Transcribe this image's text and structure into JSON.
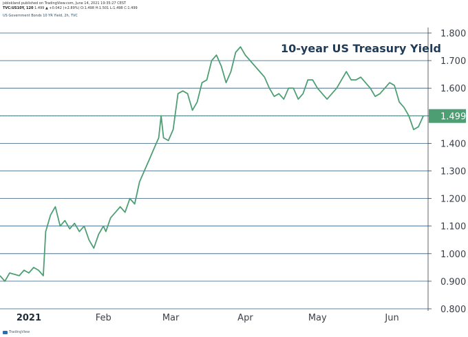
{
  "header": {
    "line1": "jsblokland published on TradingView.com, June 14, 2021 19:35:27 CEST",
    "symbol": "TVC:US10Y, 120",
    "ohlc": "1.499 ▲ +0.042 (+2.89%) O:1.498 H:1.501 L:1.498 C:1.499",
    "series_desc": "US Government Bonds 10 YR Yield, 2h, TVC"
  },
  "footer": {
    "brand": "TradingView"
  },
  "colors": {
    "line": "#4e9e74",
    "grid": "#2e5b80",
    "badge": "#4e9e74"
  },
  "chart_data": {
    "type": "line",
    "title": "10-year US Treasury Yield",
    "xlabel": "",
    "ylabel": "",
    "ylim": [
      0.8,
      1.8
    ],
    "yticks": [
      "1.800",
      "1.700",
      "1.600",
      "1.500",
      "1.400",
      "1.300",
      "1.200",
      "1.100",
      "1.000",
      "0.900",
      "0.800"
    ],
    "xticks": [
      {
        "label": "2021",
        "date": "2021-01-01"
      },
      {
        "label": "Feb",
        "date": "2021-02-01"
      },
      {
        "label": "Mar",
        "date": "2021-03-01"
      },
      {
        "label": "Apr",
        "date": "2021-04-01"
      },
      {
        "label": "May",
        "date": "2021-05-01"
      },
      {
        "label": "Jun",
        "date": "2021-06-01"
      }
    ],
    "xlim": [
      "2020-12-20",
      "2021-06-16"
    ],
    "last_value": "1.499",
    "series": [
      {
        "x": [
          "2020-12-20",
          "2020-12-22",
          "2020-12-24",
          "2020-12-28",
          "2020-12-30",
          "2021-01-01",
          "2021-01-03",
          "2021-01-05",
          "2021-01-06",
          "2021-01-07",
          "2021-01-08",
          "2021-01-10",
          "2021-01-12",
          "2021-01-14",
          "2021-01-16",
          "2021-01-18",
          "2021-01-20",
          "2021-01-22",
          "2021-01-24",
          "2021-01-26",
          "2021-01-28",
          "2021-01-30",
          "2021-02-01",
          "2021-02-02",
          "2021-02-04",
          "2021-02-06",
          "2021-02-08",
          "2021-02-10",
          "2021-02-12",
          "2021-02-14",
          "2021-02-16",
          "2021-02-18",
          "2021-02-20",
          "2021-02-22",
          "2021-02-24",
          "2021-02-25",
          "2021-02-26",
          "2021-02-28",
          "2021-03-02",
          "2021-03-04",
          "2021-03-06",
          "2021-03-08",
          "2021-03-10",
          "2021-03-12",
          "2021-03-14",
          "2021-03-16",
          "2021-03-18",
          "2021-03-20",
          "2021-03-22",
          "2021-03-24",
          "2021-03-26",
          "2021-03-28",
          "2021-03-30",
          "2021-04-01",
          "2021-04-03",
          "2021-04-05",
          "2021-04-07",
          "2021-04-09",
          "2021-04-11",
          "2021-04-13",
          "2021-04-15",
          "2021-04-17",
          "2021-04-19",
          "2021-04-21",
          "2021-04-23",
          "2021-04-25",
          "2021-04-27",
          "2021-04-29",
          "2021-05-01",
          "2021-05-03",
          "2021-05-05",
          "2021-05-07",
          "2021-05-09",
          "2021-05-11",
          "2021-05-13",
          "2021-05-15",
          "2021-05-17",
          "2021-05-19",
          "2021-05-21",
          "2021-05-23",
          "2021-05-25",
          "2021-05-27",
          "2021-05-29",
          "2021-05-31",
          "2021-06-02",
          "2021-06-04",
          "2021-06-06",
          "2021-06-08",
          "2021-06-10",
          "2021-06-12",
          "2021-06-14"
        ],
        "values": [
          0.92,
          0.9,
          0.93,
          0.92,
          0.94,
          0.93,
          0.95,
          0.94,
          0.93,
          0.92,
          1.08,
          1.14,
          1.17,
          1.1,
          1.12,
          1.09,
          1.11,
          1.08,
          1.1,
          1.05,
          1.02,
          1.07,
          1.1,
          1.08,
          1.13,
          1.15,
          1.17,
          1.15,
          1.2,
          1.18,
          1.26,
          1.3,
          1.34,
          1.38,
          1.42,
          1.5,
          1.42,
          1.41,
          1.45,
          1.58,
          1.59,
          1.58,
          1.52,
          1.55,
          1.62,
          1.63,
          1.7,
          1.72,
          1.68,
          1.62,
          1.66,
          1.73,
          1.75,
          1.72,
          1.7,
          1.68,
          1.66,
          1.64,
          1.6,
          1.57,
          1.58,
          1.56,
          1.6,
          1.6,
          1.56,
          1.58,
          1.63,
          1.63,
          1.6,
          1.58,
          1.56,
          1.58,
          1.6,
          1.63,
          1.66,
          1.63,
          1.63,
          1.64,
          1.62,
          1.6,
          1.57,
          1.58,
          1.6,
          1.62,
          1.61,
          1.55,
          1.53,
          1.5,
          1.45,
          1.46,
          1.499
        ]
      }
    ]
  }
}
